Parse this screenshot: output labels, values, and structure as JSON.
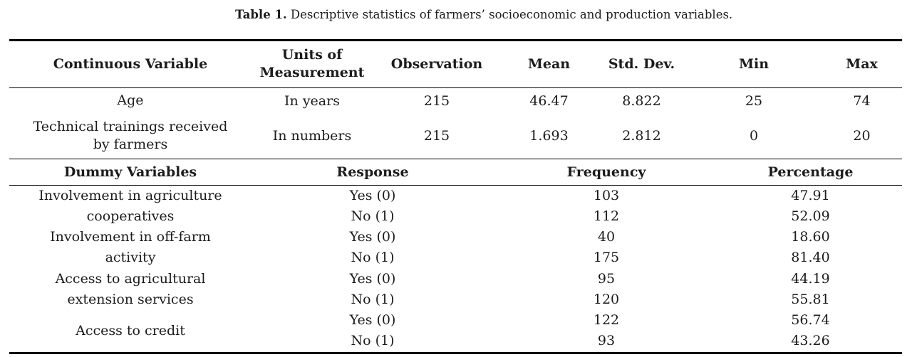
{
  "caption": {
    "label": "Table 1.",
    "text": " Descriptive statistics of farmers’ socioeconomic and production variables."
  },
  "colors": {
    "text": "#1c1c1c",
    "rule": "#000000",
    "background": "#ffffff"
  },
  "continuous_section": {
    "headers": [
      "Continuous Variable",
      "Units of Measurement",
      "Observation",
      "Mean",
      "Std. Dev.",
      "Min",
      "Max"
    ],
    "rows": [
      {
        "variable_lines": [
          "Age"
        ],
        "unit": "In years",
        "observation": "215",
        "mean": "46.47",
        "std_dev": "8.822",
        "min": "25",
        "max": "74"
      },
      {
        "variable_lines": [
          "Technical trainings received",
          "by farmers"
        ],
        "unit": "In numbers",
        "observation": "215",
        "mean": "1.693",
        "std_dev": "2.812",
        "min": "0",
        "max": "20"
      }
    ]
  },
  "dummy_section": {
    "headers": [
      "Dummy Variables",
      "Response",
      "Frequency",
      "Percentage"
    ],
    "groups": [
      {
        "variable_lines": [
          "Involvement in agriculture",
          "cooperatives"
        ],
        "responses": [
          {
            "response": "Yes (0)",
            "frequency": "103",
            "percentage": "47.91"
          },
          {
            "response": "No (1)",
            "frequency": "112",
            "percentage": "52.09"
          }
        ]
      },
      {
        "variable_lines": [
          "Involvement in off-farm",
          "activity"
        ],
        "responses": [
          {
            "response": "Yes (0)",
            "frequency": "40",
            "percentage": "18.60"
          },
          {
            "response": "No (1)",
            "frequency": "175",
            "percentage": "81.40"
          }
        ]
      },
      {
        "variable_lines": [
          "Access to agricultural",
          "extension services"
        ],
        "responses": [
          {
            "response": "Yes (0)",
            "frequency": "95",
            "percentage": "44.19"
          },
          {
            "response": "No (1)",
            "frequency": "120",
            "percentage": "55.81"
          }
        ]
      },
      {
        "variable_lines": [
          "Access to credit"
        ],
        "responses": [
          {
            "response": "Yes (0)",
            "frequency": "122",
            "percentage": "56.74"
          },
          {
            "response": "No (1)",
            "frequency": "93",
            "percentage": "43.26"
          }
        ]
      }
    ]
  }
}
